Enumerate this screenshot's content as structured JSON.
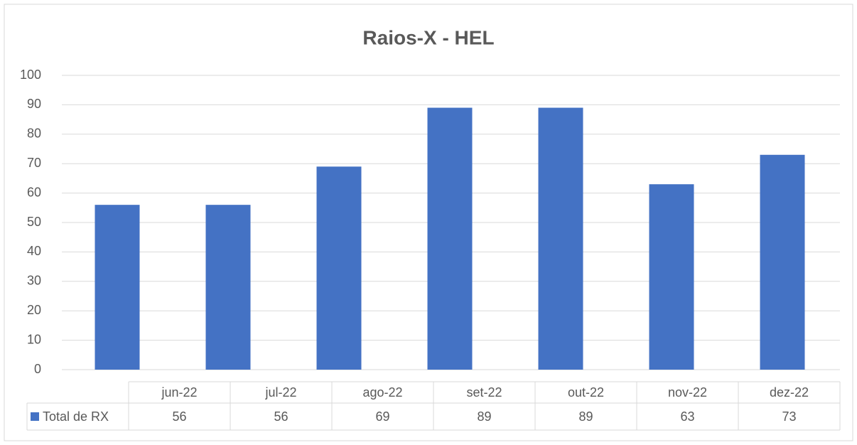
{
  "chart_data": {
    "type": "bar",
    "title": "Raios-X - HEL",
    "categories": [
      "jun-22",
      "jul-22",
      "ago-22",
      "set-22",
      "out-22",
      "nov-22",
      "dez-22"
    ],
    "series": [
      {
        "name": "Total de RX",
        "color": "#4472c4",
        "values": [
          56,
          56,
          69,
          89,
          89,
          63,
          73
        ]
      }
    ],
    "ylim": [
      0,
      100
    ],
    "yticks": [
      0,
      10,
      20,
      30,
      40,
      50,
      60,
      70,
      80,
      90,
      100
    ],
    "grid": true
  }
}
